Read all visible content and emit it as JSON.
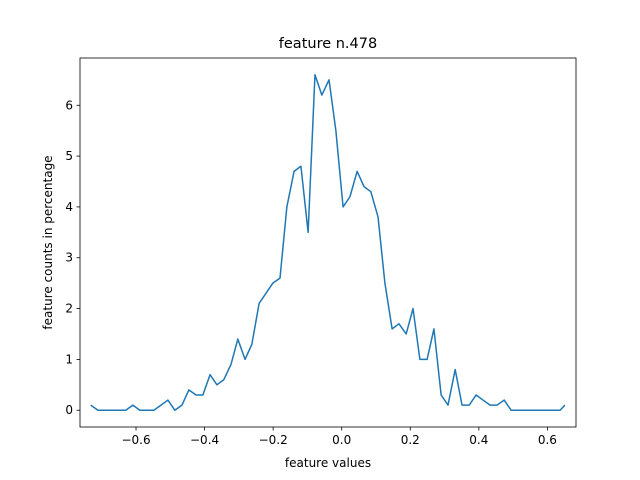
{
  "chart_data": {
    "type": "line",
    "title": "feature n.478",
    "xlabel": "feature values",
    "ylabel": "feature counts in percentage",
    "xlim": [
      -0.7634,
      0.6834
    ],
    "ylim": [
      -0.33,
      6.93
    ],
    "xticks": [
      -0.6,
      -0.4,
      -0.2,
      0.0,
      0.2,
      0.4,
      0.6
    ],
    "xtick_labels": [
      "−0.6",
      "−0.4",
      "−0.2",
      "0.0",
      "0.2",
      "0.4",
      "0.6"
    ],
    "yticks": [
      0,
      1,
      2,
      3,
      4,
      5,
      6
    ],
    "ytick_labels": [
      "0",
      "1",
      "2",
      "3",
      "4",
      "5",
      "6"
    ],
    "grid": false,
    "series": [
      {
        "color": "#1f77b4",
        "x": [
          -0.732,
          -0.711,
          -0.691,
          -0.671,
          -0.65,
          -0.63,
          -0.609,
          -0.589,
          -0.568,
          -0.548,
          -0.527,
          -0.507,
          -0.487,
          -0.466,
          -0.446,
          -0.425,
          -0.405,
          -0.384,
          -0.364,
          -0.344,
          -0.323,
          -0.303,
          -0.282,
          -0.262,
          -0.241,
          -0.221,
          -0.201,
          -0.18,
          -0.16,
          -0.139,
          -0.119,
          -0.098,
          -0.078,
          -0.058,
          -0.037,
          -0.017,
          0.004,
          0.024,
          0.045,
          0.065,
          0.085,
          0.106,
          0.126,
          0.147,
          0.167,
          0.188,
          0.208,
          0.228,
          0.249,
          0.269,
          0.29,
          0.31,
          0.331,
          0.351,
          0.372,
          0.392,
          0.412,
          0.433,
          0.453,
          0.474,
          0.494,
          0.515,
          0.535,
          0.555,
          0.576,
          0.596,
          0.617,
          0.637,
          0.651
        ],
        "y": [
          0.1,
          0,
          0,
          0,
          0,
          0,
          0.1,
          0,
          0,
          0,
          0.1,
          0.2,
          0,
          0.1,
          0.4,
          0.3,
          0.3,
          0.7,
          0.5,
          0.6,
          0.9,
          1.4,
          1.0,
          1.3,
          2.1,
          2.3,
          2.5,
          2.6,
          4.0,
          4.7,
          4.8,
          3.5,
          6.6,
          6.2,
          6.5,
          5.5,
          4.0,
          4.2,
          4.7,
          4.4,
          4.3,
          3.8,
          2.5,
          1.6,
          1.7,
          1.5,
          2.0,
          1.0,
          1.0,
          1.6,
          0.3,
          0.1,
          0.8,
          0.1,
          0.1,
          0.3,
          0.2,
          0.1,
          0.1,
          0.2,
          0,
          0,
          0,
          0,
          0,
          0,
          0,
          0,
          0.1
        ]
      }
    ]
  }
}
